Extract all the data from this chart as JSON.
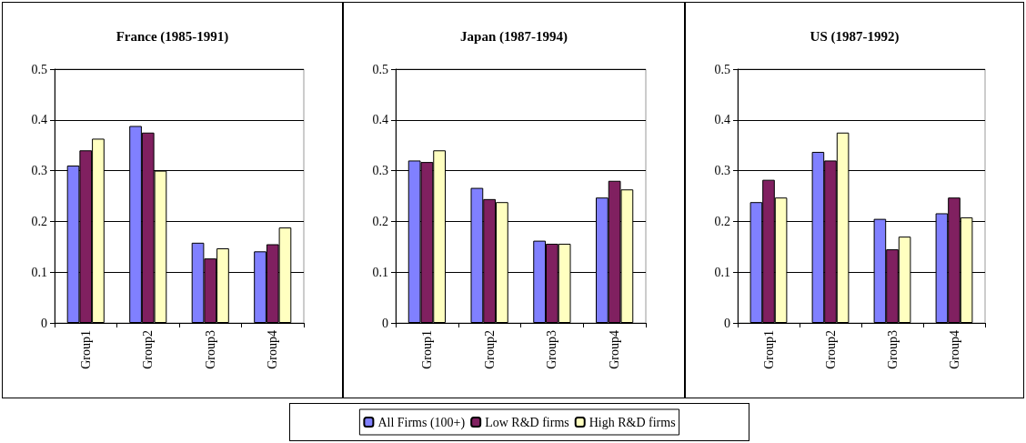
{
  "chart_data": [
    {
      "type": "bar",
      "title": "France (1985-1991)",
      "categories": [
        "Group1",
        "Group2",
        "Group3",
        "Group4"
      ],
      "series": [
        {
          "name": "All Firms (100+)",
          "color": "#8080ff",
          "values": [
            0.31,
            0.388,
            0.158,
            0.141
          ]
        },
        {
          "name": "Low R&D firms",
          "color": "#802060",
          "values": [
            0.34,
            0.375,
            0.127,
            0.155
          ]
        },
        {
          "name": "High R&D firms",
          "color": "#ffffc0",
          "values": [
            0.363,
            0.3,
            0.147,
            0.188
          ]
        }
      ],
      "ylim": [
        0,
        0.5
      ],
      "yticks": [
        0,
        0.1,
        0.2,
        0.3,
        0.4,
        0.5
      ],
      "grid": "y",
      "legend": "bottom"
    },
    {
      "type": "bar",
      "title": "Japan (1987-1994)",
      "categories": [
        "Group1",
        "Group2",
        "Group3",
        "Group4"
      ],
      "series": [
        {
          "name": "All Firms (100+)",
          "color": "#8080ff",
          "values": [
            0.32,
            0.266,
            0.162,
            0.247
          ]
        },
        {
          "name": "Low R&D firms",
          "color": "#802060",
          "values": [
            0.317,
            0.244,
            0.156,
            0.28
          ]
        },
        {
          "name": "High R&D firms",
          "color": "#ffffc0",
          "values": [
            0.34,
            0.238,
            0.156,
            0.263
          ]
        }
      ],
      "ylim": [
        0,
        0.5
      ],
      "yticks": [
        0,
        0.1,
        0.2,
        0.3,
        0.4,
        0.5
      ],
      "grid": "y",
      "legend": "bottom"
    },
    {
      "type": "bar",
      "title": "US (1987-1992)",
      "categories": [
        "Group1",
        "Group2",
        "Group3",
        "Group4"
      ],
      "series": [
        {
          "name": "All Firms (100+)",
          "color": "#8080ff",
          "values": [
            0.238,
            0.337,
            0.205,
            0.216
          ]
        },
        {
          "name": "Low R&D firms",
          "color": "#802060",
          "values": [
            0.282,
            0.32,
            0.145,
            0.247
          ]
        },
        {
          "name": "High R&D firms",
          "color": "#ffffc0",
          "values": [
            0.247,
            0.375,
            0.17,
            0.208
          ]
        }
      ],
      "ylim": [
        0,
        0.5
      ],
      "yticks": [
        0,
        0.1,
        0.2,
        0.3,
        0.4,
        0.5
      ],
      "grid": "y",
      "legend": "bottom"
    }
  ]
}
